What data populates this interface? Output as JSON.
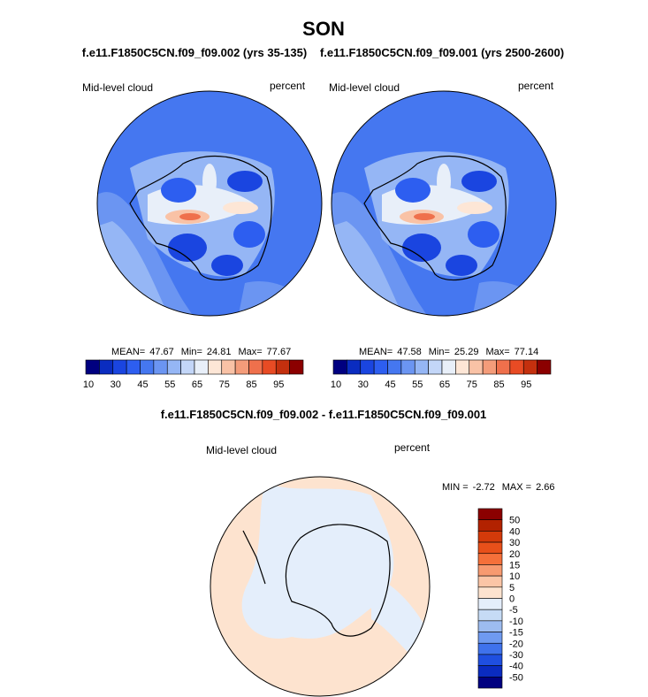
{
  "title": "SON",
  "panels": [
    {
      "subtitle": "f.e11.F1850C5CN.f09_f09.002 (yrs 35-135)",
      "left_label": "Mid-level cloud",
      "right_label": "percent",
      "stats": [
        {
          "label": "MEAN=",
          "value": 47.67
        },
        {
          "label": "Min=",
          "value": 24.81
        },
        {
          "label": "Max=",
          "value": 77.67
        }
      ],
      "colorbar": {
        "labels": [
          10,
          30,
          45,
          55,
          65,
          75,
          85,
          95
        ],
        "colors": [
          "#000080",
          "#0a2cc0",
          "#1a45e0",
          "#2d5ef0",
          "#4577f0",
          "#6b95f2",
          "#95b6f5",
          "#c3d6f8",
          "#e8eff9",
          "#fde6d6",
          "#f9c2a6",
          "#f49c7a",
          "#ef704c",
          "#e84b24",
          "#c4300e",
          "#8b0000"
        ]
      }
    },
    {
      "subtitle": "f.e11.F1850C5CN.f09_f09.001 (yrs 2500-2600)",
      "left_label": "Mid-level cloud",
      "right_label": "percent",
      "stats": [
        {
          "label": "MEAN=",
          "value": 47.58
        },
        {
          "label": "Min=",
          "value": 25.29
        },
        {
          "label": "Max=",
          "value": 77.14
        }
      ],
      "colorbar": {
        "labels": [
          10,
          30,
          45,
          55,
          65,
          75,
          85,
          95
        ],
        "colors": [
          "#000080",
          "#0a2cc0",
          "#1a45e0",
          "#2d5ef0",
          "#4577f0",
          "#6b95f2",
          "#95b6f5",
          "#c3d6f8",
          "#e8eff9",
          "#fde6d6",
          "#f9c2a6",
          "#f49c7a",
          "#ef704c",
          "#e84b24",
          "#c4300e",
          "#8b0000"
        ]
      }
    }
  ],
  "difference": {
    "title": "f.e11.F1850C5CN.f09_f09.002 - f.e11.F1850C5CN.f09_f09.001",
    "left_label": "Mid-level cloud",
    "right_label": "percent",
    "stats": [
      {
        "label": "MIN =",
        "value": -2.72
      },
      {
        "label": "MAX =",
        "value": 2.66
      }
    ],
    "colorbar": {
      "labels": [
        50,
        40,
        30,
        20,
        15,
        10,
        5,
        0,
        -5,
        -10,
        -15,
        -20,
        -30,
        -40,
        -50
      ],
      "colors": [
        "#8b0000",
        "#b22200",
        "#d33a0a",
        "#e8501a",
        "#f5703a",
        "#f79a70",
        "#fbc5a6",
        "#fde3cf",
        "#e4eefb",
        "#c6dbf5",
        "#9dbcf0",
        "#6f9af0",
        "#3f72ec",
        "#1f4fe0",
        "#0a2bc0",
        "#000080"
      ]
    }
  }
}
